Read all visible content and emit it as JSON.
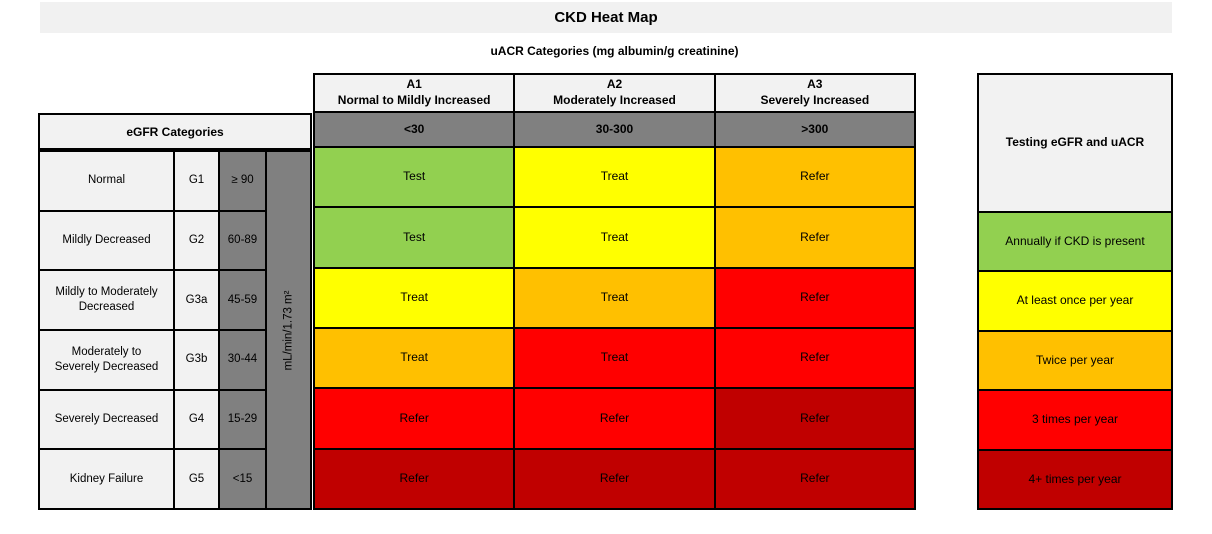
{
  "title": "CKD Heat Map",
  "subtitle": "uACR Categories (mg albumin/g creatinine)",
  "colors": {
    "green": "#92d050",
    "yellow": "#ffff00",
    "orange": "#ffc000",
    "red": "#ff0000",
    "dark_red": "#c00000",
    "dark_gray": "#808080",
    "light_gray": "#f2f2f2",
    "title_bar_gray": "#f1f1f1",
    "border": "#000000"
  },
  "uacr": {
    "columns": [
      {
        "code": "A1",
        "label": "Normal to Mildly Increased",
        "range": "<30"
      },
      {
        "code": "A2",
        "label": "Moderately Increased",
        "range": "30-300"
      },
      {
        "code": "A3",
        "label": "Severely Increased",
        "range": ">300"
      }
    ]
  },
  "egfr": {
    "header": "eGFR Categories",
    "unit": "mL/min/1.73 m²",
    "rows": [
      {
        "label": "Normal",
        "code": "G1",
        "range": "≥ 90"
      },
      {
        "label": "Mildly Decreased",
        "code": "G2",
        "range": "60-89"
      },
      {
        "label": "Mildly to Moderately Decreased",
        "code": "G3a",
        "range": "45-59"
      },
      {
        "label": "Moderately to Severely Decreased",
        "code": "G3b",
        "range": "30-44"
      },
      {
        "label": "Severely Decreased",
        "code": "G4",
        "range": "15-29"
      },
      {
        "label": "Kidney Failure",
        "code": "G5",
        "range": "<15"
      }
    ]
  },
  "grid_rows": [
    {
      "row": "G1",
      "cells": [
        {
          "action": "Test",
          "color": "green"
        },
        {
          "action": "Treat",
          "color": "yellow"
        },
        {
          "action": "Refer",
          "color": "orange"
        }
      ]
    },
    {
      "row": "G2",
      "cells": [
        {
          "action": "Test",
          "color": "green"
        },
        {
          "action": "Treat",
          "color": "yellow"
        },
        {
          "action": "Refer",
          "color": "orange"
        }
      ]
    },
    {
      "row": "G3a",
      "cells": [
        {
          "action": "Treat",
          "color": "yellow"
        },
        {
          "action": "Treat",
          "color": "orange"
        },
        {
          "action": "Refer",
          "color": "red"
        }
      ]
    },
    {
      "row": "G3b",
      "cells": [
        {
          "action": "Treat",
          "color": "orange"
        },
        {
          "action": "Treat",
          "color": "red"
        },
        {
          "action": "Refer",
          "color": "red"
        }
      ]
    },
    {
      "row": "G4",
      "cells": [
        {
          "action": "Refer",
          "color": "red"
        },
        {
          "action": "Refer",
          "color": "red"
        },
        {
          "action": "Refer",
          "color": "dark_red"
        }
      ]
    },
    {
      "row": "G5",
      "cells": [
        {
          "action": "Refer",
          "color": "dark_red"
        },
        {
          "action": "Refer",
          "color": "dark_red"
        },
        {
          "action": "Refer",
          "color": "dark_red"
        }
      ]
    }
  ],
  "right_panel": {
    "header": "Testing eGFR and uACR",
    "rows": [
      {
        "label": "Annually if CKD is present",
        "color": "green"
      },
      {
        "label": "At least once per year",
        "color": "yellow"
      },
      {
        "label": "Twice per year",
        "color": "orange"
      },
      {
        "label": "3 times per year",
        "color": "red"
      },
      {
        "label": "4+ times per year",
        "color": "dark_red"
      }
    ]
  },
  "chart_data": {
    "type": "heatmap",
    "title": "CKD Heat Map",
    "xlabel": "uACR Categories (mg albumin/g creatinine)",
    "ylabel": "eGFR Categories (mL/min/1.73 m²)",
    "x_categories": [
      "A1 Normal to Mildly Increased (<30)",
      "A2 Moderately Increased (30-300)",
      "A3 Severely Increased (>300)"
    ],
    "y_categories": [
      "G1 Normal (≥ 90)",
      "G2 Mildly Decreased (60-89)",
      "G3a Mildly to Moderately Decreased (45-59)",
      "G3b Moderately to Severely Decreased (30-44)",
      "G4 Severely Decreased (15-29)",
      "G5 Kidney Failure (<15)"
    ],
    "cells": [
      [
        "Test",
        "Treat",
        "Refer"
      ],
      [
        "Test",
        "Treat",
        "Refer"
      ],
      [
        "Treat",
        "Treat",
        "Refer"
      ],
      [
        "Treat",
        "Treat",
        "Refer"
      ],
      [
        "Refer",
        "Refer",
        "Refer"
      ],
      [
        "Refer",
        "Refer",
        "Refer"
      ]
    ],
    "cell_colors": [
      [
        "#92d050",
        "#ffff00",
        "#ffc000"
      ],
      [
        "#92d050",
        "#ffff00",
        "#ffc000"
      ],
      [
        "#ffff00",
        "#ffc000",
        "#ff0000"
      ],
      [
        "#ffc000",
        "#ff0000",
        "#ff0000"
      ],
      [
        "#ff0000",
        "#ff0000",
        "#c00000"
      ],
      [
        "#c00000",
        "#c00000",
        "#c00000"
      ]
    ],
    "legend_title": "Testing eGFR and uACR",
    "legend": [
      {
        "label": "Annually if CKD is present",
        "color": "#92d050"
      },
      {
        "label": "At least once per year",
        "color": "#ffff00"
      },
      {
        "label": "Twice per year",
        "color": "#ffc000"
      },
      {
        "label": "3 times per year",
        "color": "#ff0000"
      },
      {
        "label": "4+ times per year",
        "color": "#c00000"
      }
    ],
    "grid": true,
    "legend_position": "right"
  }
}
